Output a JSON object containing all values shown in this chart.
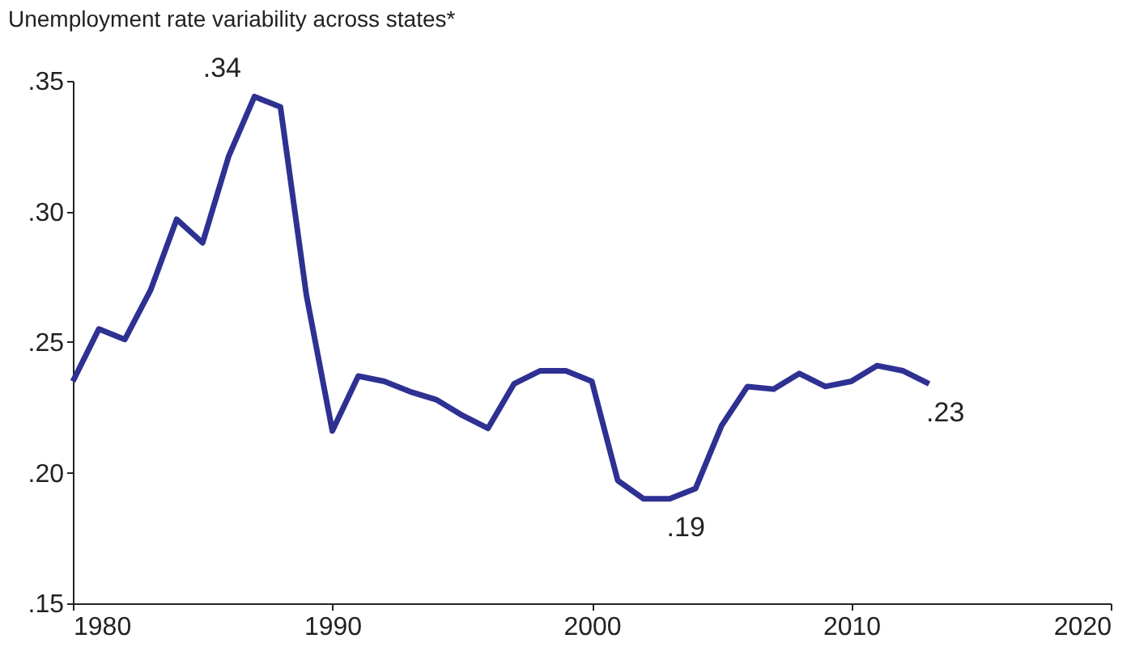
{
  "chart_data": {
    "type": "line",
    "title": "Unemployment rate variability across states*",
    "x": [
      1980,
      1981,
      1982,
      1983,
      1984,
      1985,
      1986,
      1987,
      1988,
      1989,
      1990,
      1991,
      1992,
      1993,
      1994,
      1995,
      1996,
      1997,
      1998,
      1999,
      2000,
      2001,
      2002,
      2003,
      2004,
      2005,
      2006,
      2007,
      2008,
      2009,
      2010,
      2011,
      2012,
      2013
    ],
    "series": [
      {
        "color": "#2e3192",
        "values": [
          0.235,
          0.255,
          0.251,
          0.27,
          0.297,
          0.288,
          0.321,
          0.344,
          0.34,
          0.268,
          0.216,
          0.237,
          0.235,
          0.231,
          0.228,
          0.222,
          0.217,
          0.234,
          0.239,
          0.239,
          0.235,
          0.197,
          0.19,
          0.19,
          0.194,
          0.218,
          0.233,
          0.232,
          0.238,
          0.233,
          0.235,
          0.241,
          0.239,
          0.234
        ]
      }
    ],
    "xlim": [
      1980,
      2020
    ],
    "xticks": [
      1980,
      1990,
      2000,
      2010,
      2020
    ],
    "ylim": [
      0.15,
      0.35
    ],
    "yticks": [
      {
        "value": 0.15,
        "label": ".15"
      },
      {
        "value": 0.2,
        "label": ".20"
      },
      {
        "value": 0.25,
        "label": ".25"
      },
      {
        "value": 0.3,
        "label": ".30"
      },
      {
        "value": 0.35,
        "label": ".35"
      }
    ],
    "annotations": [
      {
        "text": ".34",
        "x": 1987,
        "y": 0.344
      },
      {
        "text": ".19",
        "x": 2003,
        "y": 0.19
      },
      {
        "text": ".23",
        "x": 2013,
        "y": 0.234
      }
    ],
    "grid": false,
    "marker": "none",
    "line_style": "solid"
  }
}
